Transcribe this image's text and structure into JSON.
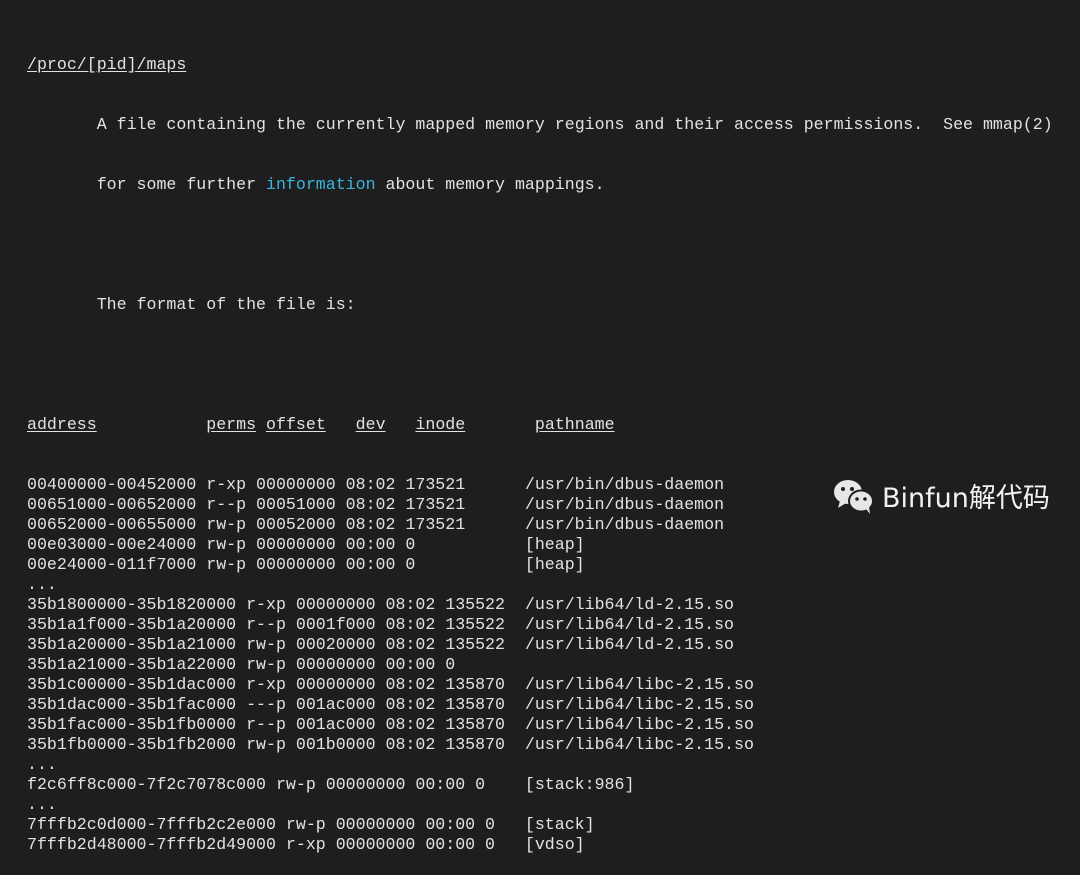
{
  "title": "/proc/[pid]/maps",
  "description": {
    "line1": "A file containing the currently mapped memory regions and their access permissions.  See mmap(2)",
    "line2_before": "for some further ",
    "line2_link": "information",
    "line2_after": " about memory mappings.",
    "format_intro": "The format of the file is:"
  },
  "header": {
    "address": "address",
    "perms": "perms",
    "offset": "offset",
    "dev": "dev",
    "inode": "inode",
    "pathname": "pathname"
  },
  "rows": [
    "00400000-00452000 r-xp 00000000 08:02 173521      /usr/bin/dbus-daemon",
    "00651000-00652000 r--p 00051000 08:02 173521      /usr/bin/dbus-daemon",
    "00652000-00655000 rw-p 00052000 08:02 173521      /usr/bin/dbus-daemon",
    "00e03000-00e24000 rw-p 00000000 00:00 0           [heap]",
    "00e24000-011f7000 rw-p 00000000 00:00 0           [heap]",
    "...",
    "35b1800000-35b1820000 r-xp 00000000 08:02 135522  /usr/lib64/ld-2.15.so",
    "35b1a1f000-35b1a20000 r--p 0001f000 08:02 135522  /usr/lib64/ld-2.15.so",
    "35b1a20000-35b1a21000 rw-p 00020000 08:02 135522  /usr/lib64/ld-2.15.so",
    "35b1a21000-35b1a22000 rw-p 00000000 00:00 0",
    "35b1c00000-35b1dac000 r-xp 00000000 08:02 135870  /usr/lib64/libc-2.15.so",
    "35b1dac000-35b1fac000 ---p 001ac000 08:02 135870  /usr/lib64/libc-2.15.so",
    "35b1fac000-35b1fb0000 r--p 001ac000 08:02 135870  /usr/lib64/libc-2.15.so",
    "35b1fb0000-35b1fb2000 rw-p 001b0000 08:02 135870  /usr/lib64/libc-2.15.so",
    "...",
    "f2c6ff8c000-7f2c7078c000 rw-p 00000000 00:00 0    [stack:986]",
    "...",
    "7fffb2c0d000-7fffb2c2e000 rw-p 00000000 00:00 0   [stack]",
    "7fffb2d48000-7fffb2d49000 r-xp 00000000 00:00 0   [vdso]"
  ],
  "watermark": {
    "icon": "wechat-icon",
    "text": "Binfun解代码"
  },
  "colors": {
    "background": "#1e1e1e",
    "text": "#e2e2e2",
    "link": "#3db3dc"
  }
}
